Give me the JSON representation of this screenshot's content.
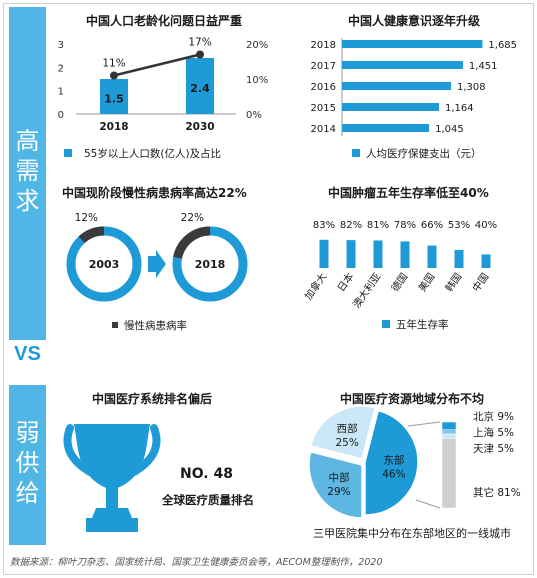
{
  "sidebar": {
    "high_demand": [
      "高",
      "需",
      "求"
    ],
    "vs": "VS",
    "weak_supply": [
      "弱",
      "供",
      "给"
    ]
  },
  "colors": {
    "primary": "#1e9ad6",
    "sidebar": "#4fb6e6",
    "dark": "#3a3a3a",
    "light": "#c9e7f6",
    "gray": "#cfcfcf"
  },
  "chart_data": [
    {
      "type": "bar",
      "title": "中国人口老龄化问题日益严重",
      "categories": [
        "2018",
        "2030"
      ],
      "series": [
        {
          "name": "55岁以上人口数(亿人)及占比",
          "type": "bar",
          "values": [
            1.5,
            2.4
          ],
          "axis": "left"
        },
        {
          "type": "line",
          "values": [
            11,
            17
          ],
          "labels": [
            "11%",
            "17%"
          ],
          "axis": "right"
        }
      ],
      "y_left_ticks": [
        "0",
        "1",
        "2",
        "3"
      ],
      "y_right_ticks": [
        "0%",
        "10%",
        "20%"
      ],
      "ylim_left": [
        0,
        3
      ],
      "ylim_right": [
        0,
        20
      ]
    },
    {
      "type": "bar",
      "orientation": "horizontal",
      "title": "中国人健康意识逐年升级",
      "categories": [
        "2018",
        "2017",
        "2016",
        "2015",
        "2014"
      ],
      "values": [
        1685,
        1451,
        1308,
        1164,
        1045
      ],
      "value_labels": [
        "1,685",
        "1,451",
        "1,308",
        "1,164",
        "1,045"
      ],
      "legend": "人均医疗保健支出（元）"
    },
    {
      "type": "pie",
      "title": "中国现阶段慢性病患病率高达22%",
      "donuts": [
        {
          "year": "2003",
          "value": 12,
          "label": "12%"
        },
        {
          "year": "2018",
          "value": 22,
          "label": "22%"
        }
      ],
      "legend": "慢性病患病率"
    },
    {
      "type": "bar",
      "title": "中国肿瘤五年生存率低至40%",
      "categories": [
        "加拿大",
        "日本",
        "澳大利亚",
        "德国",
        "美国",
        "韩国",
        "中国"
      ],
      "values": [
        83,
        82,
        81,
        78,
        66,
        53,
        40
      ],
      "value_labels": [
        "83%",
        "82%",
        "81%",
        "78%",
        "66%",
        "53%",
        "40%"
      ],
      "legend": "五年生存率"
    },
    {
      "type": "pie",
      "title": "中国医疗资源地域分布不均",
      "slices": [
        {
          "name": "东部",
          "value": 46,
          "label": "46%"
        },
        {
          "name": "中部",
          "value": 29,
          "label": "29%"
        },
        {
          "name": "西部",
          "value": 25,
          "label": "25%"
        }
      ],
      "breakdown": [
        {
          "name": "北京",
          "value": 9,
          "label": "9%"
        },
        {
          "name": "上海",
          "value": 5,
          "label": "5%"
        },
        {
          "name": "天津",
          "value": 5,
          "label": "5%"
        },
        {
          "name": "其它",
          "value": 81,
          "label": "81%"
        }
      ],
      "caption": "三甲医院集中分布在东部地区的一线城市"
    }
  ],
  "ranking": {
    "title": "中国医疗系统排名偏后",
    "rank": "NO. 48",
    "subtitle": "全球医疗质量排名"
  },
  "footnote": "数据来源：柳叶刀杂志、国家统计局、国家卫生健康委员会等，AECOM整理制作，2020"
}
